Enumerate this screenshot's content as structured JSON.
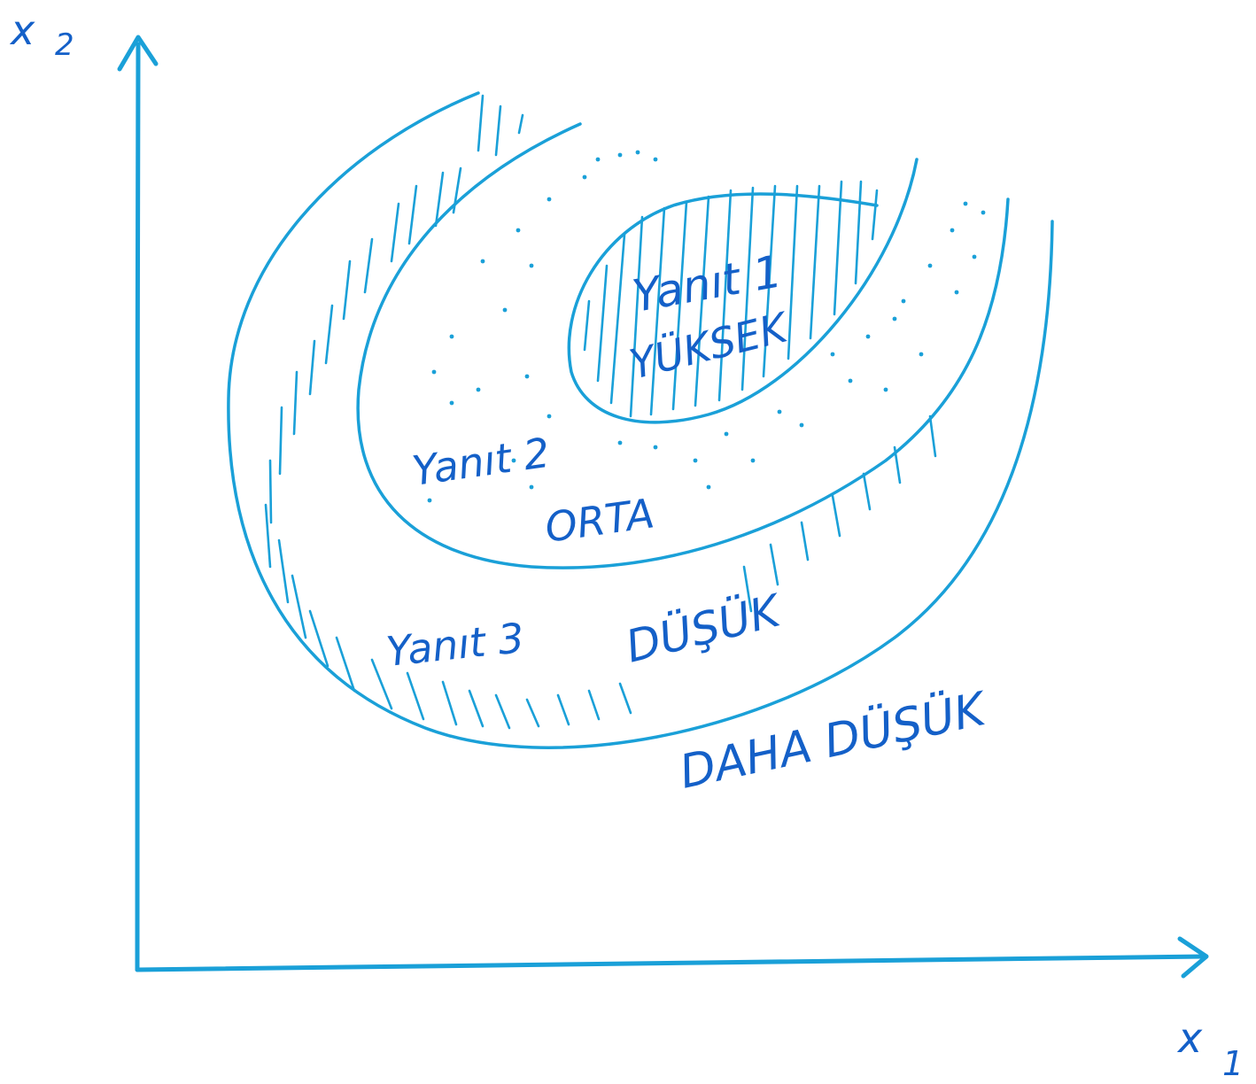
{
  "axes": {
    "x_label": "x",
    "x_sub": "1",
    "y_label": "x",
    "y_sub": "2"
  },
  "regions": {
    "r1_name": "Yanıt 1",
    "r1_level": "YÜKSEK",
    "r2_name": "Yanıt 2",
    "r2_level": "ORTA",
    "r3_name": "Yanıt 3",
    "r3_level": "DÜŞÜK",
    "outside_level": "DAHA DÜŞÜK"
  },
  "colors": {
    "ink": "#1aa0d8",
    "ink_text": "#1460c8"
  }
}
